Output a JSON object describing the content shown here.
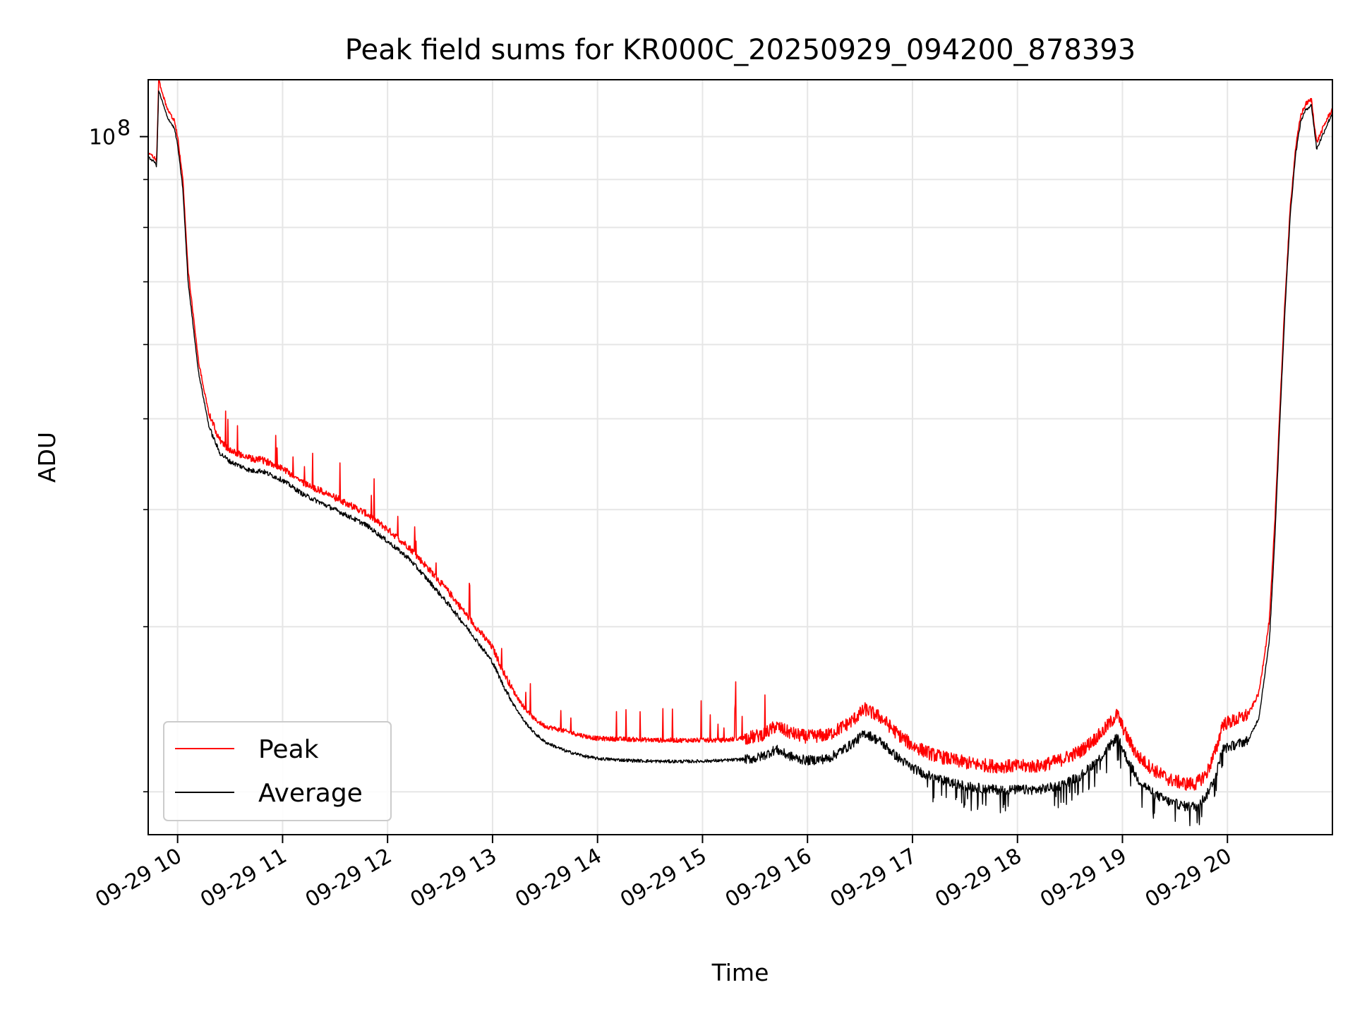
{
  "chart_data": {
    "type": "line",
    "title": "Peak field sums for KR000C_20250929_094200_878393",
    "xlabel": "Time",
    "ylabel": "ADU",
    "yscale": "log",
    "ylim": [
      18000000,
      115000000
    ],
    "xlim": [
      9.72,
      21.0
    ],
    "y_major_tick": {
      "value": 100000000,
      "label": "10",
      "exponent": "8"
    },
    "y_minor_ticks": [
      20000000,
      30000000,
      40000000,
      50000000,
      60000000,
      70000000,
      80000000,
      90000000
    ],
    "x_ticks": [
      {
        "value": 10,
        "label": "09-29 10"
      },
      {
        "value": 11,
        "label": "09-29 11"
      },
      {
        "value": 12,
        "label": "09-29 12"
      },
      {
        "value": 13,
        "label": "09-29 13"
      },
      {
        "value": 14,
        "label": "09-29 14"
      },
      {
        "value": 15,
        "label": "09-29 15"
      },
      {
        "value": 16,
        "label": "09-29 16"
      },
      {
        "value": 17,
        "label": "09-29 17"
      },
      {
        "value": 18,
        "label": "09-29 18"
      },
      {
        "value": 19,
        "label": "09-29 19"
      },
      {
        "value": 20,
        "label": "09-29 20"
      }
    ],
    "grid": true,
    "legend": {
      "position": "lower-left",
      "entries": [
        "Peak",
        "Average"
      ]
    },
    "series": [
      {
        "name": "Average",
        "color": "#000000",
        "x": [
          9.72,
          9.78,
          9.8,
          9.82,
          9.9,
          9.97,
          10.0,
          10.05,
          10.1,
          10.2,
          10.3,
          10.4,
          10.5,
          10.6,
          10.7,
          10.8,
          10.9,
          11.0,
          11.2,
          11.4,
          11.6,
          11.8,
          12.0,
          12.2,
          12.4,
          12.6,
          12.8,
          13.0,
          13.1,
          13.2,
          13.3,
          13.4,
          13.5,
          13.7,
          13.9,
          14.0,
          14.3,
          14.6,
          14.9,
          15.2,
          15.5,
          15.6,
          15.7,
          15.8,
          15.9,
          16.0,
          16.2,
          16.4,
          16.55,
          16.7,
          16.85,
          17.0,
          17.2,
          17.4,
          17.6,
          17.8,
          18.0,
          18.2,
          18.4,
          18.6,
          18.8,
          18.95,
          19.05,
          19.15,
          19.3,
          19.45,
          19.6,
          19.7,
          19.8,
          19.9,
          19.95,
          20.1,
          20.2,
          20.3,
          20.4,
          20.45,
          20.5,
          20.55,
          20.6,
          20.65,
          20.7,
          20.75,
          20.8,
          20.85,
          20.9,
          20.95,
          21.0
        ],
        "y": [
          95000000,
          94000000,
          93000000,
          112000000,
          105000000,
          102000000,
          98000000,
          88000000,
          70000000,
          56000000,
          49000000,
          46000000,
          45000000,
          44500000,
          44000000,
          44000000,
          43500000,
          43000000,
          41500000,
          40500000,
          39500000,
          38500000,
          37000000,
          35500000,
          33500000,
          31500000,
          29500000,
          27500000,
          26000000,
          24800000,
          23800000,
          23100000,
          22600000,
          22100000,
          21800000,
          21700000,
          21600000,
          21550000,
          21550000,
          21600000,
          21700000,
          21900000,
          22200000,
          21900000,
          21700000,
          21600000,
          21700000,
          22400000,
          23100000,
          22600000,
          21800000,
          21200000,
          20700000,
          20400000,
          20200000,
          20100000,
          20100000,
          20100000,
          20300000,
          20800000,
          21800000,
          22900000,
          21600000,
          20600000,
          19900000,
          19500000,
          19300000,
          19300000,
          19800000,
          21000000,
          22200000,
          22500000,
          22700000,
          24000000,
          29000000,
          37000000,
          50000000,
          66000000,
          83000000,
          96000000,
          104000000,
          107000000,
          108000000,
          97000000,
          100000000,
          103000000,
          106000000
        ]
      },
      {
        "name": "Peak",
        "color": "#ff0000",
        "x": [
          9.72,
          9.78,
          9.8,
          9.82,
          9.9,
          9.97,
          10.0,
          10.05,
          10.1,
          10.2,
          10.3,
          10.4,
          10.5,
          10.6,
          10.7,
          10.8,
          10.9,
          11.0,
          11.2,
          11.4,
          11.6,
          11.8,
          12.0,
          12.2,
          12.4,
          12.6,
          12.8,
          13.0,
          13.1,
          13.2,
          13.3,
          13.4,
          13.5,
          13.7,
          13.9,
          14.0,
          14.3,
          14.6,
          14.9,
          15.2,
          15.5,
          15.6,
          15.7,
          15.8,
          15.9,
          16.0,
          16.2,
          16.4,
          16.55,
          16.7,
          16.85,
          17.0,
          17.2,
          17.4,
          17.6,
          17.8,
          18.0,
          18.2,
          18.4,
          18.6,
          18.8,
          18.95,
          19.05,
          19.15,
          19.3,
          19.45,
          19.6,
          19.7,
          19.8,
          19.9,
          19.95,
          20.1,
          20.2,
          20.3,
          20.4,
          20.45,
          20.5,
          20.55,
          20.6,
          20.65,
          20.7,
          20.75,
          20.8,
          20.85,
          20.9,
          20.95,
          21.0
        ],
        "y": [
          96000000,
          95000000,
          94000000,
          115000000,
          107000000,
          104000000,
          100000000,
          90000000,
          72000000,
          57500000,
          50500000,
          47500000,
          46200000,
          45800000,
          45300000,
          45200000,
          44800000,
          44300000,
          42700000,
          41700000,
          40700000,
          39600000,
          38100000,
          36500000,
          34500000,
          32500000,
          30400000,
          28500000,
          26900000,
          25600000,
          24600000,
          23900000,
          23500000,
          23200000,
          22900000,
          22800000,
          22750000,
          22700000,
          22700000,
          22700000,
          22900000,
          23100000,
          23500000,
          23200000,
          23000000,
          22900000,
          23000000,
          23700000,
          24500000,
          24000000,
          23100000,
          22400000,
          21900000,
          21600000,
          21400000,
          21300000,
          21300000,
          21300000,
          21600000,
          22100000,
          23100000,
          24200000,
          22800000,
          21800000,
          21100000,
          20600000,
          20400000,
          20400000,
          20900000,
          22300000,
          23600000,
          23900000,
          24200000,
          25500000,
          30500000,
          38500000,
          51500000,
          67500000,
          84500000,
          97500000,
          105500000,
          108500000,
          109500000,
          98500000,
          101500000,
          104500000,
          107000000
        ]
      }
    ]
  }
}
